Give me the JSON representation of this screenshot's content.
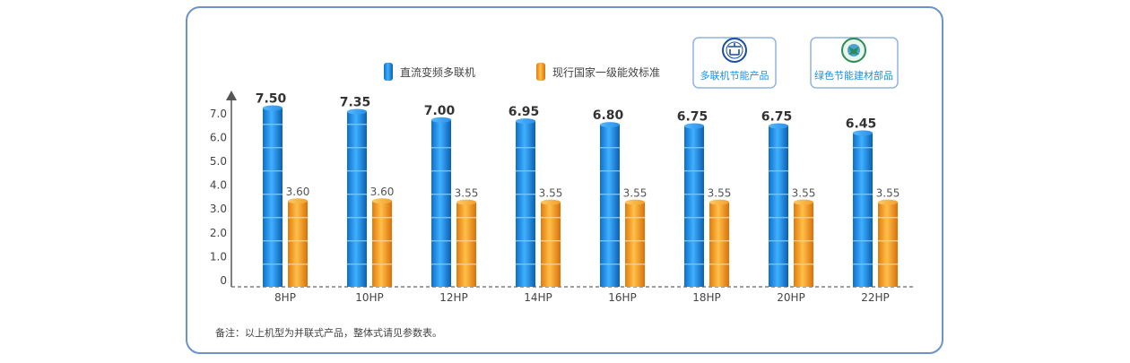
{
  "legend": {
    "series_a": "直流变频多联机",
    "series_b": "现行国家一级能效标准"
  },
  "badges": [
    {
      "label": "多联机节能产品",
      "icon": "energy-saving-seal-icon",
      "color": "#1a4fa0"
    },
    {
      "label": "绿色节能建材部品",
      "icon": "green-building-seal-icon",
      "color": "#2e8b57"
    }
  ],
  "note": "备注：以上机型为并联式产品，整体式请见参数表。",
  "colors": {
    "series_a": "#1e8fe6",
    "series_b": "#f39a1f",
    "badge_text": "#1d8fe0",
    "frame": "#6b93c9"
  },
  "chart_data": {
    "type": "bar",
    "categories": [
      "8HP",
      "10HP",
      "12HP",
      "14HP",
      "16HP",
      "18HP",
      "20HP",
      "22HP"
    ],
    "series": [
      {
        "name": "直流变频多联机",
        "values": [
          7.5,
          7.35,
          7.0,
          6.95,
          6.8,
          6.75,
          6.75,
          6.45
        ],
        "labels": [
          "7.50",
          "7.35",
          "7.00",
          "6.95",
          "6.80",
          "6.75",
          "6.75",
          "6.45"
        ]
      },
      {
        "name": "现行国家一级能效标准",
        "values": [
          3.6,
          3.6,
          3.55,
          3.55,
          3.55,
          3.55,
          3.55,
          3.55
        ],
        "labels": [
          "3.60",
          "3.60",
          "3.55",
          "3.55",
          "3.55",
          "3.55",
          "3.55",
          "3.55"
        ]
      }
    ],
    "yticks": [
      "0",
      "1.0",
      "2.0",
      "3.0",
      "4.0",
      "5.0",
      "6.0",
      "7.0"
    ],
    "ylim": [
      0,
      7.5
    ],
    "grid": false,
    "legend_position": "top"
  }
}
